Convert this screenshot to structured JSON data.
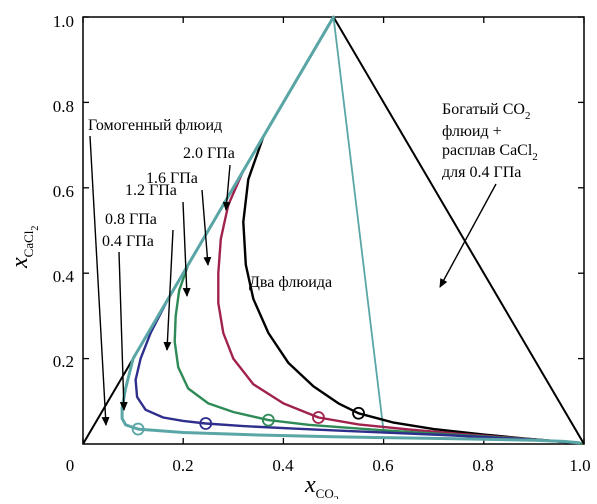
{
  "chart_data": {
    "type": "line",
    "xlabel": "x",
    "xlabel_sub": "CO",
    "xlabel_sub2": "2",
    "ylabel": "x",
    "ylabel_sub": "CaCl",
    "ylabel_sub2": "2",
    "xlim": [
      0,
      1.0
    ],
    "ylim": [
      0,
      1.0
    ],
    "x_ticks": [
      "0",
      "0.2",
      "0.4",
      "0.6",
      "0.8",
      "1.0"
    ],
    "y_ticks": [
      "0.2",
      "0.4",
      "0.6",
      "0.8",
      "1.0"
    ],
    "x_tick_values": [
      0,
      0.2,
      0.4,
      0.6,
      0.8,
      1.0
    ],
    "y_tick_values": [
      0.2,
      0.4,
      0.6,
      0.8,
      1.0
    ],
    "triangle": [
      [
        0,
        0
      ],
      [
        0.5,
        1.0
      ],
      [
        1.0,
        0
      ]
    ],
    "tie_line": [
      [
        0.5,
        1.0
      ],
      [
        0.6,
        0.03
      ]
    ],
    "series": [
      {
        "name": "0.4 ГПа",
        "color": "#5aa6a6",
        "marker": [
          0.11,
          0.035
        ],
        "points": [
          [
            0.5,
            1.0
          ],
          [
            0.4,
            0.8
          ],
          [
            0.3,
            0.6
          ],
          [
            0.2,
            0.4
          ],
          [
            0.15,
            0.3
          ],
          [
            0.1,
            0.2
          ],
          [
            0.085,
            0.13
          ],
          [
            0.078,
            0.085
          ],
          [
            0.078,
            0.06
          ],
          [
            0.085,
            0.045
          ],
          [
            0.11,
            0.035
          ],
          [
            0.2,
            0.027
          ],
          [
            0.35,
            0.021
          ],
          [
            0.5,
            0.017
          ],
          [
            0.6,
            0.015
          ],
          [
            0.7,
            0.013
          ],
          [
            0.8,
            0.011
          ],
          [
            0.9,
            0.009
          ],
          [
            0.96,
            0.006
          ],
          [
            0.99,
            0.003
          ]
        ]
      },
      {
        "name": "0.8 ГПа",
        "color": "#2e2e8c",
        "marker": [
          0.245,
          0.048
        ],
        "points": [
          [
            0.5,
            1.0
          ],
          [
            0.25,
            0.5
          ],
          [
            0.17,
            0.34
          ],
          [
            0.135,
            0.26
          ],
          [
            0.115,
            0.2
          ],
          [
            0.105,
            0.15
          ],
          [
            0.108,
            0.11
          ],
          [
            0.125,
            0.08
          ],
          [
            0.16,
            0.062
          ],
          [
            0.2,
            0.054
          ],
          [
            0.245,
            0.048
          ],
          [
            0.32,
            0.042
          ],
          [
            0.42,
            0.036
          ],
          [
            0.52,
            0.031
          ],
          [
            0.62,
            0.026
          ],
          [
            0.72,
            0.021
          ],
          [
            0.82,
            0.015
          ],
          [
            0.9,
            0.01
          ],
          [
            0.96,
            0.005
          ],
          [
            0.99,
            0.002
          ]
        ]
      },
      {
        "name": "1.2 ГПа",
        "color": "#2e8b57",
        "marker": [
          0.37,
          0.056
        ],
        "points": [
          [
            0.5,
            1.0
          ],
          [
            0.33,
            0.66
          ],
          [
            0.25,
            0.5
          ],
          [
            0.21,
            0.42
          ],
          [
            0.192,
            0.36
          ],
          [
            0.185,
            0.3
          ],
          [
            0.183,
            0.24
          ],
          [
            0.19,
            0.18
          ],
          [
            0.21,
            0.13
          ],
          [
            0.25,
            0.095
          ],
          [
            0.3,
            0.075
          ],
          [
            0.37,
            0.056
          ],
          [
            0.45,
            0.045
          ],
          [
            0.55,
            0.036
          ],
          [
            0.65,
            0.028
          ],
          [
            0.75,
            0.021
          ],
          [
            0.85,
            0.014
          ],
          [
            0.92,
            0.009
          ],
          [
            0.97,
            0.004
          ],
          [
            0.995,
            0.001
          ]
        ]
      },
      {
        "name": "1.6 ГПа",
        "color": "#a0224e",
        "marker": [
          0.47,
          0.062
        ],
        "points": [
          [
            0.5,
            1.0
          ],
          [
            0.4,
            0.8
          ],
          [
            0.32,
            0.64
          ],
          [
            0.29,
            0.56
          ],
          [
            0.275,
            0.48
          ],
          [
            0.27,
            0.4
          ],
          [
            0.27,
            0.33
          ],
          [
            0.28,
            0.26
          ],
          [
            0.3,
            0.2
          ],
          [
            0.34,
            0.14
          ],
          [
            0.4,
            0.095
          ],
          [
            0.47,
            0.062
          ],
          [
            0.55,
            0.046
          ],
          [
            0.65,
            0.034
          ],
          [
            0.75,
            0.024
          ],
          [
            0.85,
            0.015
          ],
          [
            0.92,
            0.009
          ],
          [
            0.97,
            0.004
          ],
          [
            0.995,
            0.001
          ]
        ]
      },
      {
        "name": "2.0 ГПа",
        "color": "#000000",
        "marker": [
          0.55,
          0.072
        ],
        "points": [
          [
            0.5,
            1.0
          ],
          [
            0.42,
            0.84
          ],
          [
            0.36,
            0.72
          ],
          [
            0.33,
            0.62
          ],
          [
            0.32,
            0.52
          ],
          [
            0.325,
            0.42
          ],
          [
            0.34,
            0.34
          ],
          [
            0.37,
            0.26
          ],
          [
            0.41,
            0.19
          ],
          [
            0.46,
            0.135
          ],
          [
            0.51,
            0.095
          ],
          [
            0.55,
            0.072
          ],
          [
            0.62,
            0.05
          ],
          [
            0.7,
            0.035
          ],
          [
            0.8,
            0.022
          ],
          [
            0.88,
            0.013
          ],
          [
            0.95,
            0.006
          ],
          [
            0.99,
            0.002
          ]
        ]
      }
    ],
    "annotations": {
      "homogeneous": "Гомогенный флюид",
      "two_fluids": "Два флюида",
      "rich_line1": "Богатый CO",
      "rich_line1_sub": "2",
      "rich_line2": "флюид +",
      "rich_line3": "расплав CaCl",
      "rich_line3_sub": "2",
      "rich_line4": "для 0.4 ГПа"
    }
  }
}
